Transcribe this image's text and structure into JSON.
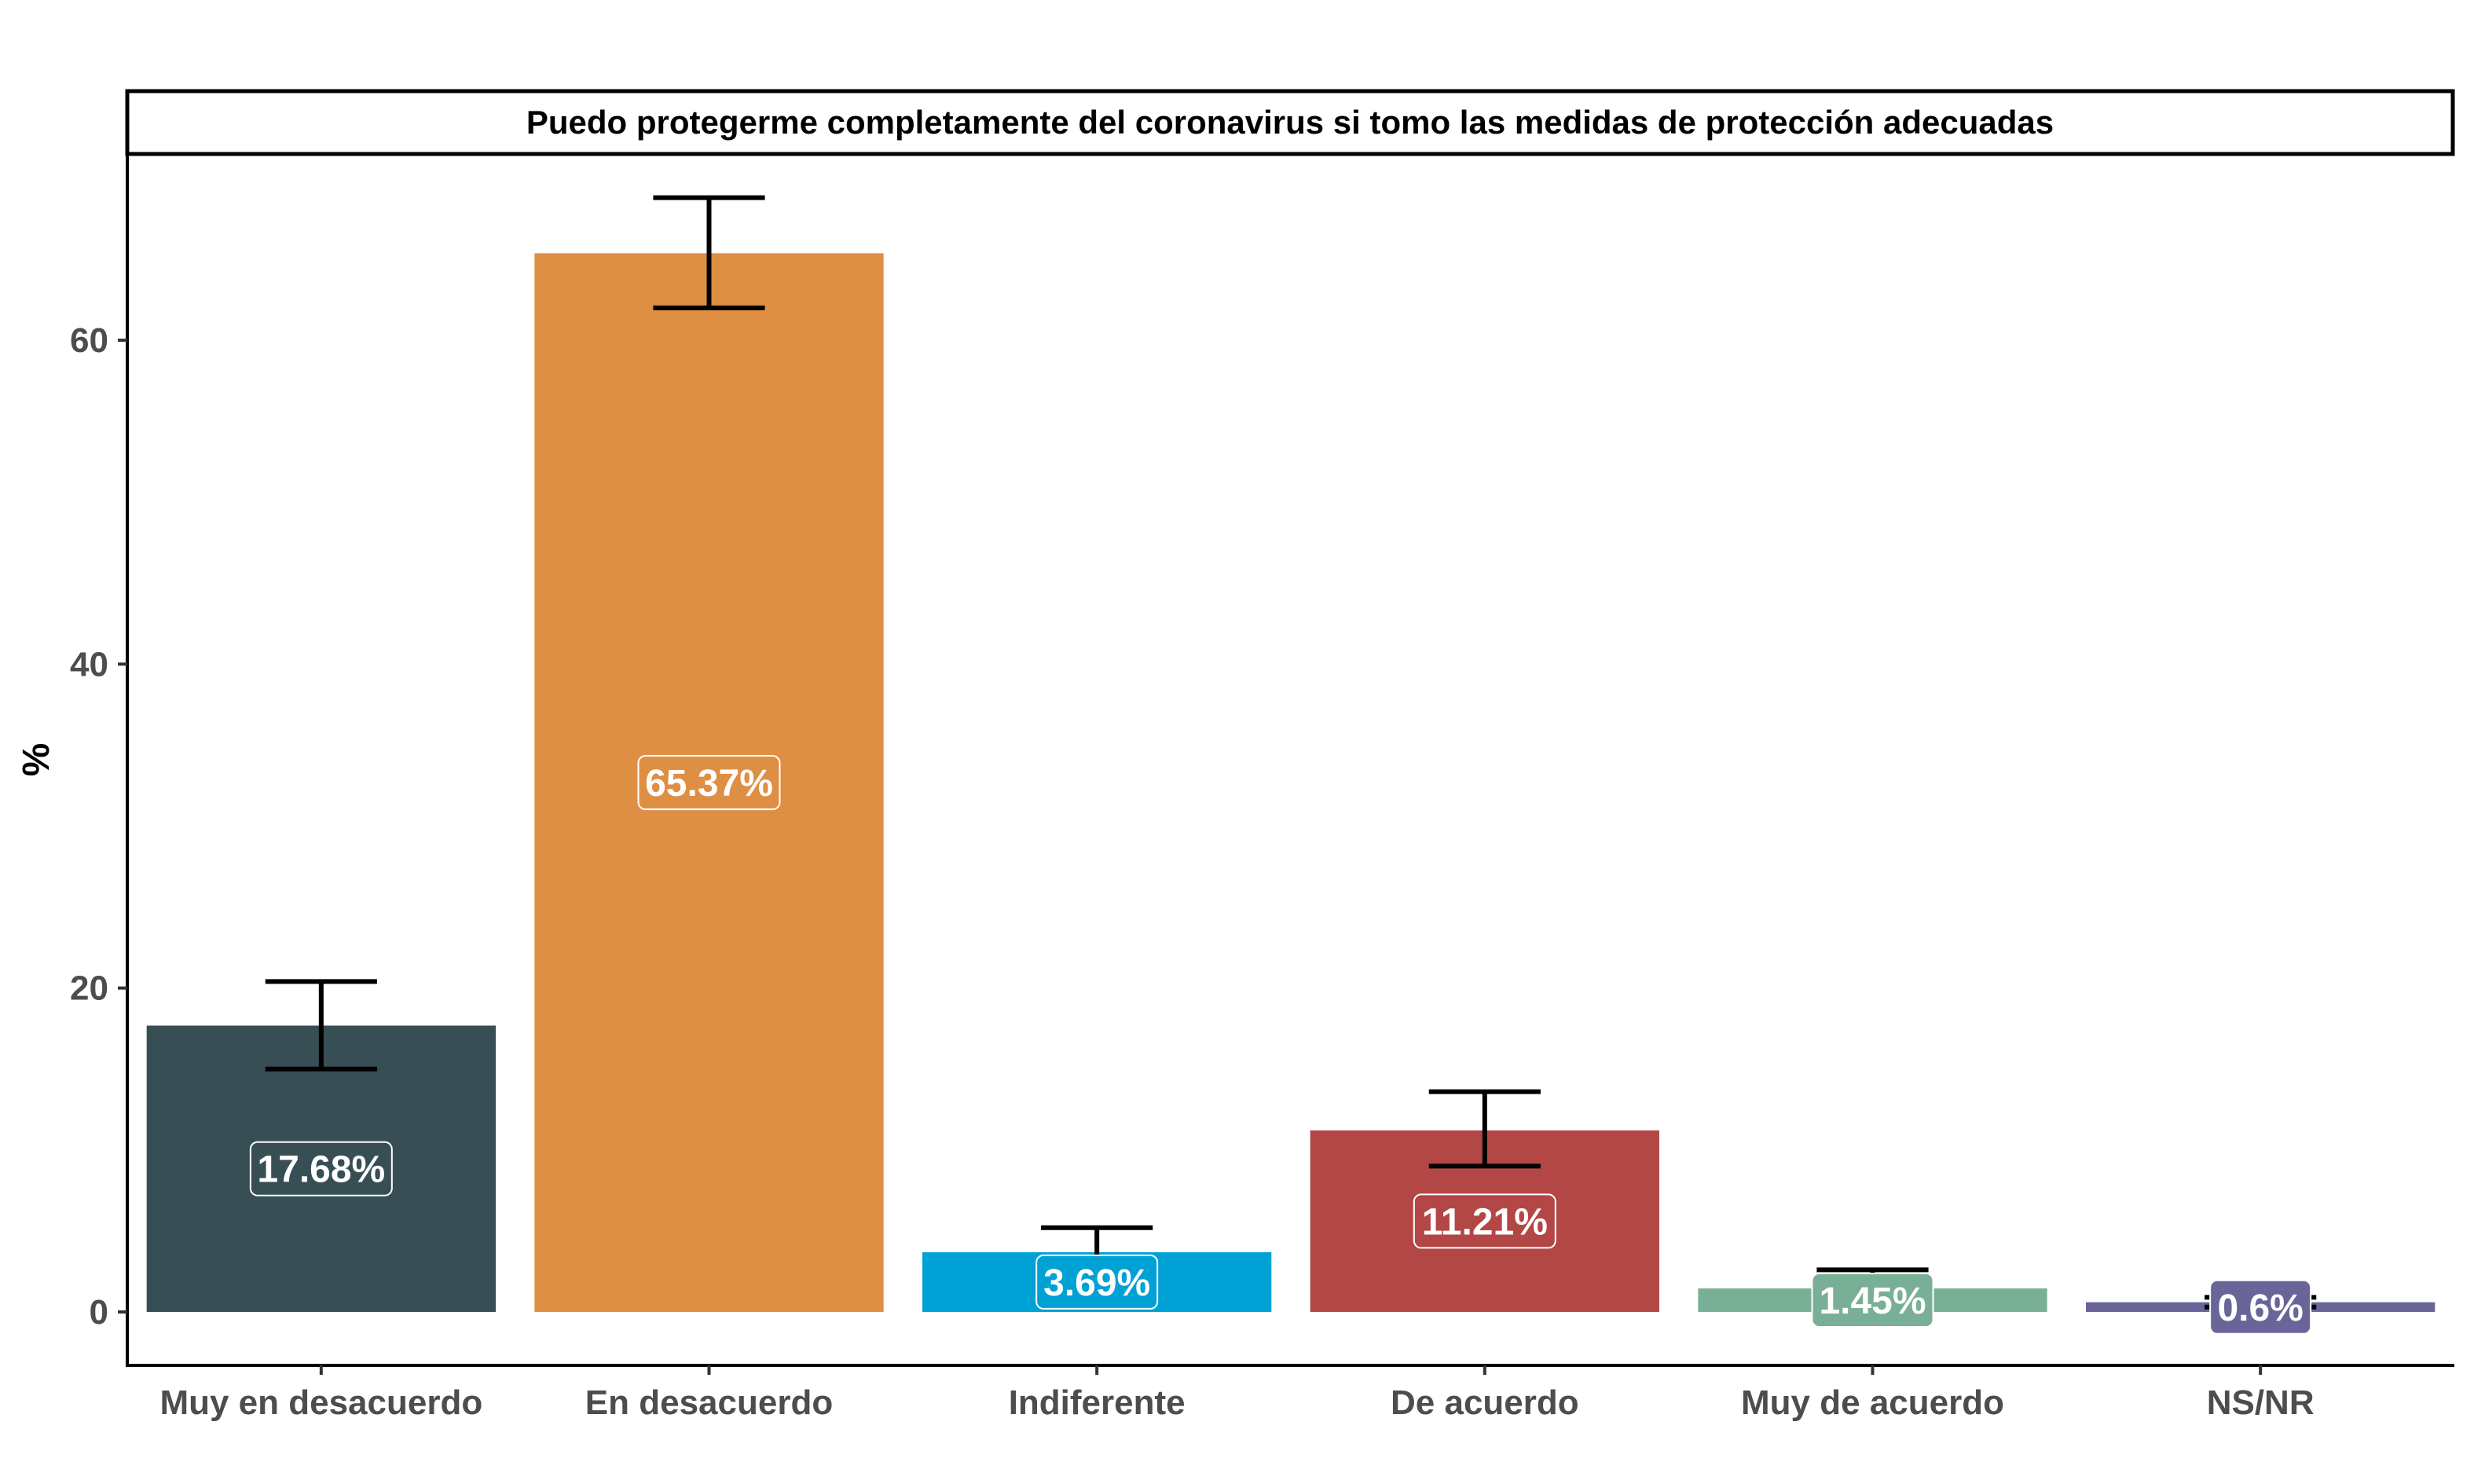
{
  "chart_data": {
    "type": "bar",
    "title": "Puedo protegerme completamente del coronavirus si tomo las medidas de protección adecuadas",
    "xlabel": "",
    "ylabel": "%",
    "ylim": [
      -3.3,
      71.5
    ],
    "yticks": [
      0,
      20,
      40,
      60
    ],
    "ytick_labels": [
      "0",
      "20",
      "40",
      "60"
    ],
    "grid": false,
    "legend": "none",
    "categories": [
      "Muy en desacuerdo",
      "En desacuerdo",
      "Indiferente",
      "De acuerdo",
      "Muy de acuerdo",
      "NS/NR"
    ],
    "values": [
      17.68,
      65.37,
      3.69,
      11.21,
      1.45,
      0.6
    ],
    "labels": [
      "17.68%",
      "65.37%",
      "3.69%",
      "11.21%",
      "1.45%",
      "0.6%"
    ],
    "error_low": [
      15.0,
      62.0,
      2.5,
      9.0,
      1.0,
      0.3
    ],
    "error_high": [
      20.4,
      68.8,
      5.2,
      13.6,
      2.6,
      0.9
    ],
    "colors": [
      "#374e55",
      "#df8f44",
      "#00a1d5",
      "#b24745",
      "#79af97",
      "#6a6599"
    ]
  }
}
